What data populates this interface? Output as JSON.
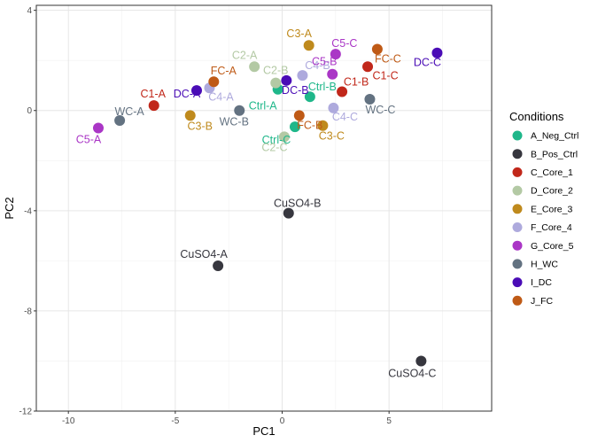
{
  "chart_data": {
    "type": "scatter",
    "xlabel": "PC1",
    "ylabel": "PC2",
    "xlim": [
      -11.5,
      9.8
    ],
    "ylim": [
      -12,
      4.2
    ],
    "x_ticks": [
      -10,
      -5,
      0,
      5
    ],
    "y_ticks": [
      4,
      0,
      -4,
      -8,
      -12
    ],
    "x_tick_labels": [
      "-10",
      "-5",
      "0",
      "5"
    ],
    "y_tick_labels": [
      "4",
      "0",
      "-4",
      "-8",
      "-12"
    ],
    "grid": true,
    "legend": {
      "title": "Conditions",
      "placement": "right",
      "entries": [
        {
          "name": "A_Neg_Ctrl",
          "color": "#1fb78a"
        },
        {
          "name": "B_Pos_Ctrl",
          "color": "#36363e"
        },
        {
          "name": "C_Core_1",
          "color": "#c1271a"
        },
        {
          "name": "D_Core_2",
          "color": "#b3c9a4"
        },
        {
          "name": "E_Core_3",
          "color": "#bf8a1d"
        },
        {
          "name": "F_Core_4",
          "color": "#aeaadd"
        },
        {
          "name": "G_Core_5",
          "color": "#aa36c6"
        },
        {
          "name": "H_WC",
          "color": "#637281"
        },
        {
          "name": "I_DC",
          "color": "#4a0cb6"
        },
        {
          "name": "J_FC",
          "color": "#bf5a16"
        }
      ]
    },
    "points": [
      {
        "label": "Ctrl-A",
        "group": "A_Neg_Ctrl",
        "x": -0.2,
        "y": 0.85
      },
      {
        "label": "Ctrl-B",
        "group": "A_Neg_Ctrl",
        "x": 1.3,
        "y": 0.55
      },
      {
        "label": "Ctrl-C",
        "group": "A_Neg_Ctrl",
        "x": 0.6,
        "y": -0.65
      },
      {
        "label": "CuSO4-A",
        "group": "B_Pos_Ctrl",
        "x": -3.0,
        "y": -6.2
      },
      {
        "label": "CuSO4-B",
        "group": "B_Pos_Ctrl",
        "x": 0.3,
        "y": -4.1
      },
      {
        "label": "CuSO4-C",
        "group": "B_Pos_Ctrl",
        "x": 6.5,
        "y": -10.0
      },
      {
        "label": "C1-A",
        "group": "C_Core_1",
        "x": -6.0,
        "y": 0.2
      },
      {
        "label": "C1-B",
        "group": "C_Core_1",
        "x": 2.8,
        "y": 0.75
      },
      {
        "label": "C1-C",
        "group": "C_Core_1",
        "x": 4.0,
        "y": 1.75
      },
      {
        "label": "C2-A",
        "group": "D_Core_2",
        "x": -1.3,
        "y": 1.75
      },
      {
        "label": "C2-B",
        "group": "D_Core_2",
        "x": -0.3,
        "y": 1.1
      },
      {
        "label": "C2-C",
        "group": "D_Core_2",
        "x": 0.1,
        "y": -1.05
      },
      {
        "label": "C3-A",
        "group": "E_Core_3",
        "x": 1.25,
        "y": 2.6
      },
      {
        "label": "C3-B",
        "group": "E_Core_3",
        "x": -4.3,
        "y": -0.2
      },
      {
        "label": "C3-C",
        "group": "E_Core_3",
        "x": 1.9,
        "y": -0.6
      },
      {
        "label": "C4-A",
        "group": "F_Core_4",
        "x": -3.4,
        "y": 0.9
      },
      {
        "label": "C4-B",
        "group": "F_Core_4",
        "x": 0.95,
        "y": 1.4
      },
      {
        "label": "C4-C",
        "group": "F_Core_4",
        "x": 2.4,
        "y": 0.1
      },
      {
        "label": "C5-A",
        "group": "G_Core_5",
        "x": -8.6,
        "y": -0.7
      },
      {
        "label": "C5-B",
        "group": "G_Core_5",
        "x": 2.35,
        "y": 1.45
      },
      {
        "label": "C5-C",
        "group": "G_Core_5",
        "x": 2.5,
        "y": 2.25
      },
      {
        "label": "WC-A",
        "group": "H_WC",
        "x": -7.6,
        "y": -0.4
      },
      {
        "label": "WC-B",
        "group": "H_WC",
        "x": -2.0,
        "y": 0.0
      },
      {
        "label": "WC-C",
        "group": "H_WC",
        "x": 4.1,
        "y": 0.45
      },
      {
        "label": "DC-A",
        "group": "I_DC",
        "x": -4.0,
        "y": 0.8
      },
      {
        "label": "DC-B",
        "group": "I_DC",
        "x": 0.2,
        "y": 1.2
      },
      {
        "label": "DC-C",
        "group": "I_DC",
        "x": 7.25,
        "y": 2.3
      },
      {
        "label": "FC-A",
        "group": "J_FC",
        "x": -3.2,
        "y": 1.15
      },
      {
        "label": "FC-B",
        "group": "J_FC",
        "x": 0.8,
        "y": -0.2
      },
      {
        "label": "FC-C",
        "group": "J_FC",
        "x": 4.45,
        "y": 2.45
      }
    ]
  }
}
